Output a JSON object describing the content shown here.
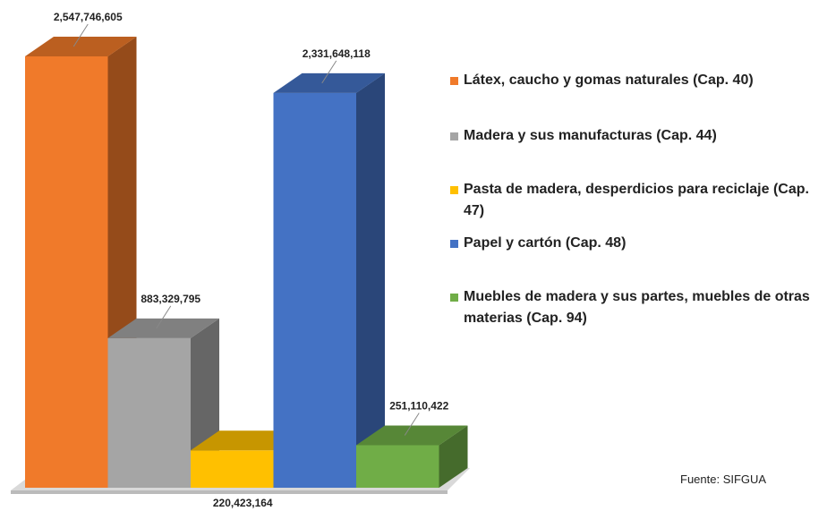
{
  "chart_data": {
    "type": "bar",
    "source": "Fuente: SIFGUA",
    "series": [
      {
        "name": "Látex, caucho y gomas naturales (Cap. 40)",
        "color": "#f07a2a",
        "values": [
          2547746605
        ],
        "value_labels": [
          "2,547,746,605"
        ]
      },
      {
        "name": "Madera y sus manufacturas (Cap. 44)",
        "color": "#a5a5a5",
        "values": [
          883329795
        ],
        "value_labels": [
          "883,329,795"
        ]
      },
      {
        "name": "Pasta de madera, desperdicios para reciclaje (Cap. 47)",
        "color": "#ffc000",
        "values": [
          220423164
        ],
        "value_labels": [
          "220,423,164"
        ]
      },
      {
        "name": "Papel y cartón (Cap. 48)",
        "color": "#4472c4",
        "values": [
          2331648118
        ],
        "value_labels": [
          "2,331,648,118"
        ]
      },
      {
        "name": "Muebles de madera y sus partes, muebles de otras materias (Cap. 94)",
        "color": "#70ad47",
        "values": [
          251110422
        ],
        "value_labels": [
          "251,110,422"
        ]
      }
    ]
  }
}
